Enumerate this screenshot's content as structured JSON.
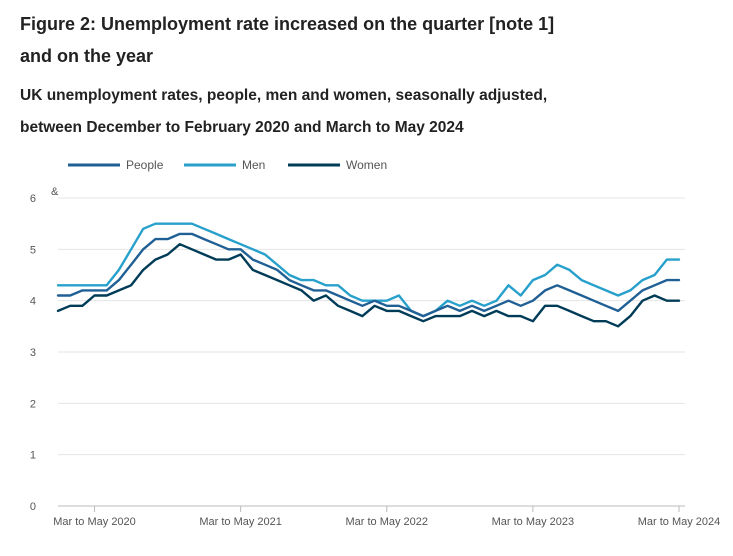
{
  "header": {
    "title_line1": "Figure 2: Unemployment rate increased on the quarter [note 1]",
    "title_line2": "and on the year",
    "subtitle_line1": "UK unemployment rates, people, men and women, seasonally adjusted,",
    "subtitle_line2": "between December to February 2020 and March to May 2024"
  },
  "chart_data": {
    "type": "line",
    "title": "Figure 2: Unemployment rate increased on the quarter [note 1] and on the year",
    "subtitle": "UK unemployment rates, people, men and women, seasonally adjusted, between December to February 2020 and March to May 2024",
    "ylabel": "&",
    "xlabel": "",
    "ylim": [
      0,
      6
    ],
    "yticks": [
      "0",
      "1",
      "2",
      "3",
      "4",
      "5",
      "6"
    ],
    "x_tick_labels": [
      "Mar to May 2020",
      "Mar to May 2021",
      "Mar to May 2022",
      "Mar to May 2023",
      "Mar to May 2024"
    ],
    "x_tick_indices": [
      3,
      15,
      27,
      39,
      51
    ],
    "n_periods": 52,
    "grid": true,
    "legend_position": "top-left",
    "series": [
      {
        "name": "People",
        "color": "#206095",
        "values": [
          4.1,
          4.1,
          4.2,
          4.2,
          4.2,
          4.4,
          4.7,
          5.0,
          5.2,
          5.2,
          5.3,
          5.3,
          5.2,
          5.1,
          5.0,
          5.0,
          4.8,
          4.7,
          4.6,
          4.4,
          4.3,
          4.2,
          4.2,
          4.1,
          4.0,
          3.9,
          4.0,
          3.9,
          3.9,
          3.8,
          3.7,
          3.8,
          3.9,
          3.8,
          3.9,
          3.8,
          3.9,
          4.0,
          3.9,
          4.0,
          4.2,
          4.3,
          4.2,
          4.1,
          4.0,
          3.9,
          3.8,
          4.0,
          4.2,
          4.3,
          4.4,
          4.4
        ]
      },
      {
        "name": "Men",
        "color": "#27a0cc",
        "values": [
          4.3,
          4.3,
          4.3,
          4.3,
          4.3,
          4.6,
          5.0,
          5.4,
          5.5,
          5.5,
          5.5,
          5.5,
          5.4,
          5.3,
          5.2,
          5.1,
          5.0,
          4.9,
          4.7,
          4.5,
          4.4,
          4.4,
          4.3,
          4.3,
          4.1,
          4.0,
          4.0,
          4.0,
          4.1,
          3.8,
          3.7,
          3.8,
          4.0,
          3.9,
          4.0,
          3.9,
          4.0,
          4.3,
          4.1,
          4.4,
          4.5,
          4.7,
          4.6,
          4.4,
          4.3,
          4.2,
          4.1,
          4.2,
          4.4,
          4.5,
          4.8,
          4.8
        ]
      },
      {
        "name": "Women",
        "color": "#003c57",
        "values": [
          3.8,
          3.9,
          3.9,
          4.1,
          4.1,
          4.2,
          4.3,
          4.6,
          4.8,
          4.9,
          5.1,
          5.0,
          4.9,
          4.8,
          4.8,
          4.9,
          4.6,
          4.5,
          4.4,
          4.3,
          4.2,
          4.0,
          4.1,
          3.9,
          3.8,
          3.7,
          3.9,
          3.8,
          3.8,
          3.7,
          3.6,
          3.7,
          3.7,
          3.7,
          3.8,
          3.7,
          3.8,
          3.7,
          3.7,
          3.6,
          3.9,
          3.9,
          3.8,
          3.7,
          3.6,
          3.6,
          3.5,
          3.7,
          4.0,
          4.1,
          4.0,
          4.0
        ]
      }
    ]
  }
}
